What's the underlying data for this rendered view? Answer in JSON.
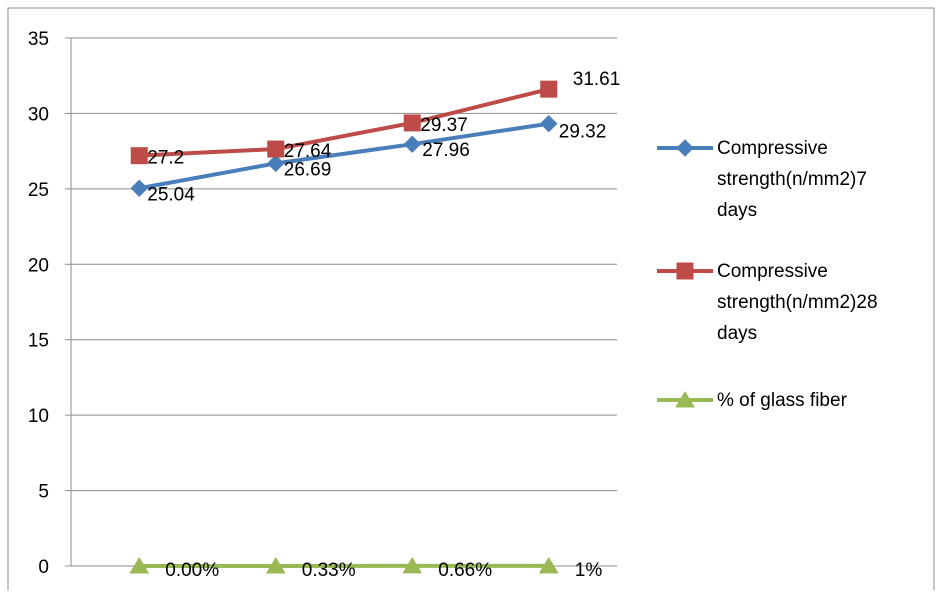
{
  "chart_data": {
    "type": "line",
    "title": "",
    "xlabel": "",
    "ylabel": "",
    "ylim": [
      0,
      35
    ],
    "yticks": [
      0,
      5,
      10,
      15,
      20,
      25,
      30,
      35
    ],
    "grid": "horizontal",
    "legend": "right",
    "x_count": 4,
    "series": [
      {
        "name": "Compressive strength(n/mm2)7 days",
        "legend_lines": [
          "Compressive",
          "strength(n/mm2)7",
          "days"
        ],
        "values": [
          25.04,
          26.69,
          27.96,
          29.32
        ],
        "labels": [
          "25.04",
          "26.69",
          "27.96",
          "29.32"
        ],
        "color": "#4A7EBB",
        "marker": "diamond"
      },
      {
        "name": "Compressive strength(n/mm2)28 days",
        "legend_lines": [
          "Compressive",
          "strength(n/mm2)28",
          "days"
        ],
        "values": [
          27.2,
          27.64,
          29.37,
          31.61
        ],
        "labels": [
          "27.2",
          "27.64",
          "29.37",
          "31.61"
        ],
        "color": "#BE4B48",
        "marker": "square"
      },
      {
        "name": "% of glass fiber",
        "legend_lines": [
          "% of glass fiber"
        ],
        "values": [
          0,
          0.0033,
          0.0066,
          0.01
        ],
        "labels": [
          "0.00%",
          "0.33%",
          "0.66%",
          "1%"
        ],
        "color": "#98B954",
        "marker": "triangle"
      }
    ]
  }
}
